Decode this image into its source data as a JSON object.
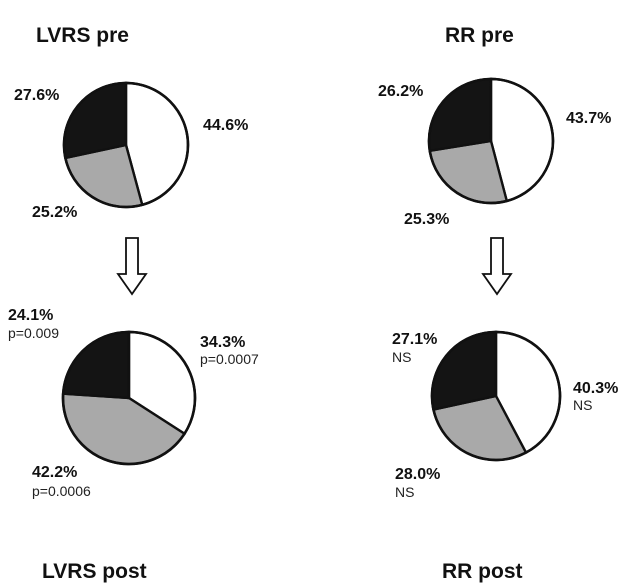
{
  "chart_data": [
    {
      "type": "pie",
      "title": "LVRS pre",
      "slices": [
        {
          "label": "44.6%",
          "value": 44.6,
          "color": "#ffffff",
          "note": ""
        },
        {
          "label": "25.2%",
          "value": 25.2,
          "color": "#a9a9a9",
          "note": ""
        },
        {
          "label": "27.6%",
          "value": 27.6,
          "color": "#141414",
          "note": ""
        }
      ]
    },
    {
      "type": "pie",
      "title": "RR pre",
      "slices": [
        {
          "label": "43.7%",
          "value": 43.7,
          "color": "#ffffff",
          "note": ""
        },
        {
          "label": "25.3%",
          "value": 25.3,
          "color": "#a9a9a9",
          "note": ""
        },
        {
          "label": "26.2%",
          "value": 26.2,
          "color": "#141414",
          "note": ""
        }
      ]
    },
    {
      "type": "pie",
      "title": "LVRS post",
      "slices": [
        {
          "label": "34.3%",
          "value": 34.3,
          "color": "#ffffff",
          "note": "p=0.0007"
        },
        {
          "label": "42.2%",
          "value": 42.2,
          "color": "#a9a9a9",
          "note": "p=0.0006"
        },
        {
          "label": "24.1%",
          "value": 24.1,
          "color": "#141414",
          "note": "p=0.009"
        }
      ]
    },
    {
      "type": "pie",
      "title": "RR post",
      "slices": [
        {
          "label": "40.3%",
          "value": 40.3,
          "color": "#ffffff",
          "note": "NS"
        },
        {
          "label": "28.0%",
          "value": 28.0,
          "color": "#a9a9a9",
          "note": "NS"
        },
        {
          "label": "27.1%",
          "value": 27.1,
          "color": "#141414",
          "note": "NS"
        }
      ]
    }
  ]
}
